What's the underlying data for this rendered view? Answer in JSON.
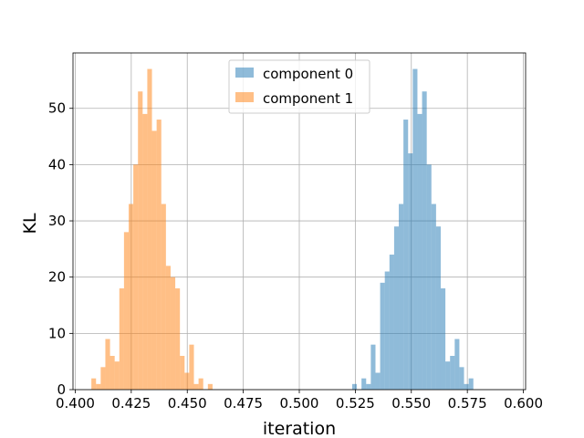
{
  "chart_data": {
    "type": "bar",
    "subtype": "histogram",
    "xlabel": "iteration",
    "ylabel": "KL",
    "xlim": [
      0.399,
      0.601
    ],
    "ylim": [
      0,
      59.85
    ],
    "xticks": [
      0.4,
      0.425,
      0.45,
      0.475,
      0.5,
      0.525,
      0.55,
      0.575,
      0.6
    ],
    "xtick_labels": [
      "0.400",
      "0.425",
      "0.450",
      "0.475",
      "0.500",
      "0.525",
      "0.550",
      "0.575",
      "0.600"
    ],
    "yticks": [
      0,
      10,
      20,
      30,
      40,
      50
    ],
    "ytick_labels": [
      "0",
      "10",
      "20",
      "30",
      "40",
      "50"
    ],
    "grid": true,
    "legend_position": "top-center",
    "series": [
      {
        "name": "component 0",
        "color": "#1f77b4",
        "opacity": 0.5,
        "bin_start": 0.5236,
        "bin_width": 0.00208,
        "counts": [
          1,
          0,
          2,
          1,
          8,
          3,
          19,
          21,
          24,
          29,
          33,
          48,
          42,
          57,
          49,
          53,
          40,
          33,
          29,
          18,
          5,
          6,
          9,
          4,
          1,
          2
        ]
      },
      {
        "name": "component 1",
        "color": "#ff7f0e",
        "opacity": 0.5,
        "bin_start": 0.4072,
        "bin_width": 0.00208,
        "counts": [
          2,
          1,
          4,
          9,
          6,
          5,
          18,
          28,
          33,
          40,
          53,
          49,
          57,
          46,
          48,
          33,
          22,
          20,
          18,
          6,
          3,
          8,
          1,
          2,
          0,
          1
        ]
      }
    ]
  }
}
